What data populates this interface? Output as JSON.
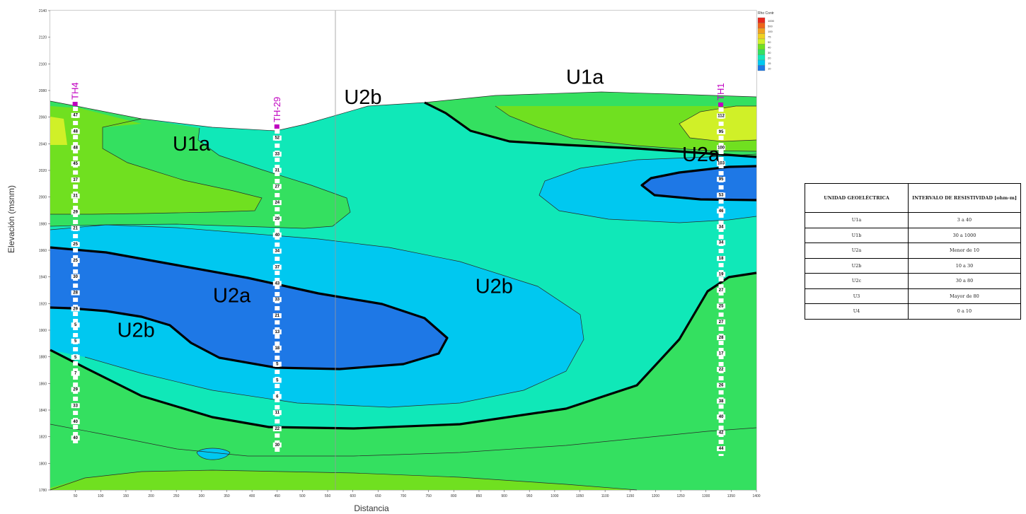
{
  "chart_data": {
    "type": "heatmap",
    "title": "",
    "xlabel": "Distancia",
    "ylabel": "Elevación (msnm)",
    "xlim": [
      0,
      1400
    ],
    "ylim": [
      1780,
      2140
    ],
    "x_ticks": [
      50,
      100,
      150,
      200,
      250,
      300,
      350,
      400,
      450,
      500,
      550,
      600,
      650,
      700,
      750,
      800,
      850,
      900,
      950,
      1000,
      1050,
      1100,
      1150,
      1200,
      1250,
      1300,
      1350,
      1400
    ],
    "y_ticks": [
      1780,
      1800,
      1820,
      1840,
      1860,
      1880,
      1900,
      1920,
      1940,
      1960,
      1980,
      2000,
      2020,
      2040,
      2060,
      2080,
      2100,
      2120,
      2140
    ],
    "grid": false,
    "legend": {
      "title": "Rho Contr",
      "placement": "top-right",
      "levels": [
        1000,
        500,
        100,
        75,
        50,
        40,
        30,
        20,
        15,
        10
      ]
    },
    "boreholes": [
      {
        "name": "TH4",
        "x": 50,
        "values": [
          47,
          48,
          48,
          45,
          37,
          31,
          29,
          21,
          25,
          25,
          30,
          28,
          29,
          5,
          5,
          5,
          7,
          29,
          33,
          40,
          40
        ]
      },
      {
        "name": "TH-29",
        "x": 450,
        "values": [
          52,
          33,
          31,
          27,
          24,
          29,
          40,
          34,
          37,
          43,
          33,
          21,
          13,
          18,
          5,
          5,
          6,
          11,
          22,
          30
        ]
      },
      {
        "name": "TH1",
        "x": 1330,
        "values": [
          112,
          95,
          100,
          103,
          95,
          53,
          46,
          34,
          34,
          18,
          19,
          27,
          25,
          27,
          28,
          17,
          22,
          26,
          38,
          40,
          42,
          44
        ]
      }
    ],
    "zones": [
      {
        "label": "U1a",
        "x": 1060,
        "y": 2085
      },
      {
        "label": "U2b",
        "x": 620,
        "y": 2070
      },
      {
        "label": "U1a",
        "x": 280,
        "y": 2035
      },
      {
        "label": "U2a",
        "x": 1290,
        "y": 2027
      },
      {
        "label": "U2a",
        "x": 360,
        "y": 1921
      },
      {
        "label": "U2b",
        "x": 880,
        "y": 1928
      },
      {
        "label": "U2b",
        "x": 170,
        "y": 1895
      }
    ]
  },
  "unit_table": {
    "headers": [
      "UNIDAD GEOELÉCTRICA",
      "INTERVALO DE RESISTIVIDAD [ohm-m]"
    ],
    "rows": [
      [
        "U1a",
        "3 a 40"
      ],
      [
        "U1b",
        "30 a 1000"
      ],
      [
        "U2a",
        "Menor de 10"
      ],
      [
        "U2b",
        "10 a 30"
      ],
      [
        "U2c",
        "30 a 80"
      ],
      [
        "U3",
        "Mayor de 80"
      ],
      [
        "U4",
        "0 a 10"
      ]
    ]
  },
  "colors": {
    "very_low": "#1e78e6",
    "low": "#00c8f0",
    "medium": "#10e8b8",
    "medium_high": "#34e060",
    "high": "#70e020",
    "very_high": "#d0f028",
    "borehole": "#c000c0"
  }
}
